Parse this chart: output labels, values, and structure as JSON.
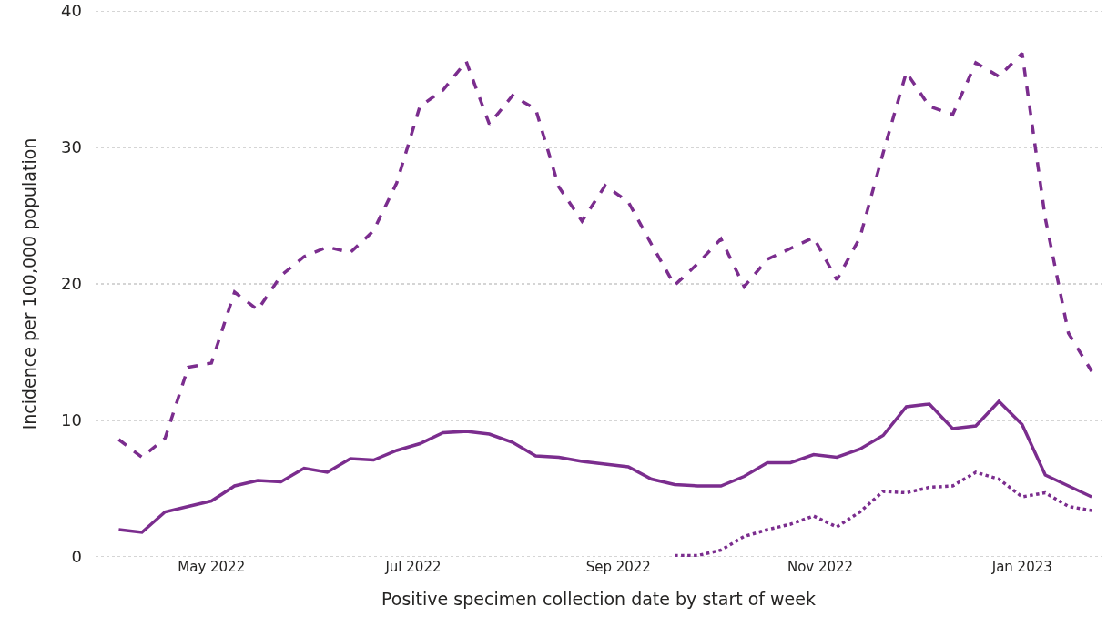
{
  "chart_data": {
    "type": "line",
    "xlabel": "Positive specimen collection date by start of week",
    "ylabel": "Incidence per 100,000 population",
    "x": [
      "2022-04-03",
      "2022-04-10",
      "2022-04-17",
      "2022-04-24",
      "2022-05-01",
      "2022-05-08",
      "2022-05-15",
      "2022-05-22",
      "2022-05-29",
      "2022-06-05",
      "2022-06-12",
      "2022-06-19",
      "2022-06-26",
      "2022-07-03",
      "2022-07-10",
      "2022-07-17",
      "2022-07-24",
      "2022-07-31",
      "2022-08-07",
      "2022-08-14",
      "2022-08-21",
      "2022-08-28",
      "2022-09-04",
      "2022-09-11",
      "2022-09-18",
      "2022-09-25",
      "2022-10-02",
      "2022-10-09",
      "2022-10-16",
      "2022-10-23",
      "2022-10-30",
      "2022-11-06",
      "2022-11-13",
      "2022-11-20",
      "2022-11-27",
      "2022-12-04",
      "2022-12-11",
      "2022-12-18",
      "2022-12-25",
      "2023-01-01",
      "2023-01-08",
      "2023-01-15",
      "2023-01-22"
    ],
    "series": [
      {
        "color": "#7b2d8e",
        "line_style": "dashed",
        "values": [
          8.6,
          7.3,
          8.7,
          13.9,
          14.2,
          19.4,
          18.1,
          20.6,
          22.0,
          22.7,
          22.3,
          23.9,
          27.4,
          33.0,
          34.2,
          36.3,
          31.7,
          33.8,
          32.8,
          27.1,
          24.6,
          27.2,
          26.0,
          22.9,
          19.9,
          21.5,
          23.3,
          19.8,
          21.8,
          22.6,
          23.4,
          20.3,
          23.4,
          29.6,
          35.5,
          33.0,
          32.4,
          36.2,
          35.2,
          36.9,
          24.8,
          16.4,
          13.6
        ]
      },
      {
        "color": "#7b2d8e",
        "line_style": "solid",
        "values": [
          2.0,
          1.8,
          3.3,
          3.7,
          4.1,
          5.2,
          5.6,
          5.5,
          6.5,
          6.2,
          7.2,
          7.1,
          7.8,
          8.3,
          9.1,
          9.2,
          9.0,
          8.4,
          7.4,
          7.3,
          7.0,
          6.8,
          6.6,
          5.7,
          5.3,
          5.2,
          5.2,
          5.9,
          6.9,
          6.9,
          7.5,
          7.3,
          7.9,
          8.9,
          11.0,
          11.2,
          9.4,
          9.6,
          11.4,
          9.7,
          6.0,
          5.2,
          4.4
        ]
      },
      {
        "color": "#7b2d8e",
        "line_style": "dotted",
        "values": [
          null,
          null,
          null,
          null,
          null,
          null,
          null,
          null,
          null,
          null,
          null,
          null,
          null,
          null,
          null,
          null,
          null,
          null,
          null,
          null,
          null,
          null,
          null,
          null,
          0.1,
          0.1,
          0.5,
          1.5,
          2.0,
          2.4,
          3.0,
          2.2,
          3.3,
          4.8,
          4.7,
          5.1,
          5.2,
          6.2,
          5.7,
          4.4,
          4.7,
          3.7,
          3.4
        ]
      }
    ],
    "xlim": [
      "2022-03-27",
      "2023-01-25"
    ],
    "xticks": [
      {
        "value": "2022-05-01",
        "label": "May 2022"
      },
      {
        "value": "2022-07-01",
        "label": "Jul 2022"
      },
      {
        "value": "2022-09-01",
        "label": "Sep 2022"
      },
      {
        "value": "2022-11-01",
        "label": "Nov 2022"
      },
      {
        "value": "2023-01-01",
        "label": "Jan 2023"
      }
    ],
    "ylim": [
      0,
      40
    ],
    "yticks": [
      0,
      10,
      20,
      30,
      40
    ],
    "grid": "y",
    "marker": "none"
  }
}
